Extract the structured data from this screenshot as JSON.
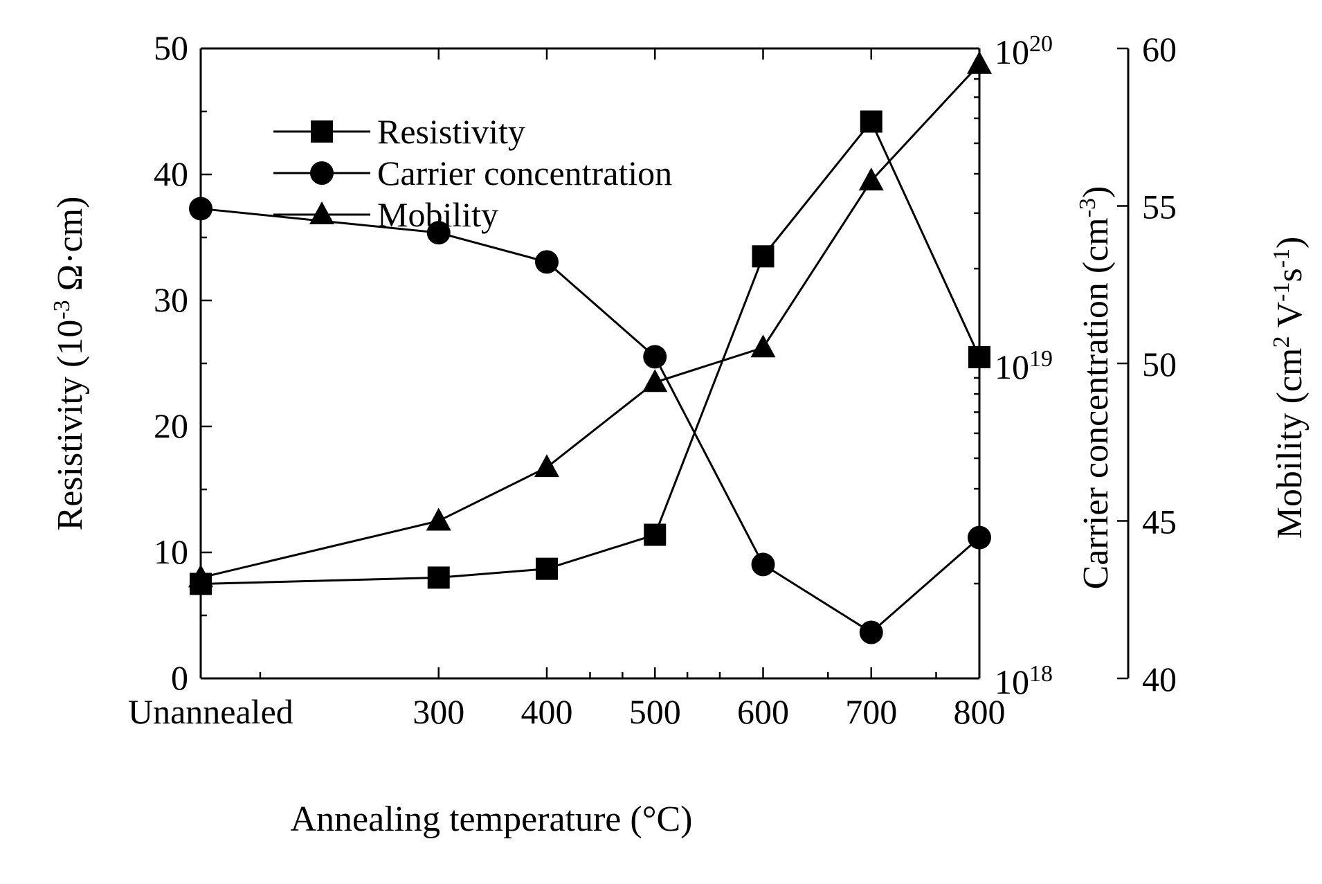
{
  "chart_data": {
    "type": "line",
    "xlabel": "Annealing temperature (°C)",
    "categories": [
      "Unannealed",
      "300",
      "400",
      "500",
      "600",
      "700",
      "800"
    ],
    "x": [
      80,
      300,
      400,
      500,
      600,
      700,
      800
    ],
    "xlim": [
      80,
      800
    ],
    "x_minor_ticks": [
      135,
      440,
      470,
      530,
      560,
      660,
      760
    ],
    "left_axis": {
      "label_pre": "Resistivity (10",
      "label_sup": "-3",
      "label_post": " Ω·cm)",
      "ylim": [
        0,
        50
      ],
      "ticks": [
        "0",
        "10",
        "20",
        "30",
        "40",
        "50"
      ],
      "tick_values": [
        0,
        10,
        20,
        30,
        40,
        50
      ],
      "minor_ticks": [
        5,
        15,
        25,
        35,
        45
      ]
    },
    "middle_axis": {
      "label_pre": "Carrier concentration (cm",
      "label_sup": "-3",
      "label_post": ")",
      "scale": "log",
      "ylim_exp": [
        18,
        20
      ],
      "ticks": [
        {
          "base": "10",
          "exp": "18",
          "value_exp": 18
        },
        {
          "base": "10",
          "exp": "19",
          "value_exp": 19
        },
        {
          "base": "10",
          "exp": "20",
          "value_exp": 20
        }
      ]
    },
    "right_axis": {
      "label_pre": "Mobility (cm",
      "label_sup1": "2",
      "label_mid": " V",
      "label_sup2": "-1",
      "label_mid2": "s",
      "label_sup3": "-1",
      "label_post": ")",
      "ylim": [
        40,
        60
      ],
      "ticks": [
        "40",
        "45",
        "50",
        "55",
        "60"
      ],
      "tick_values": [
        40,
        45,
        50,
        55,
        60
      ]
    },
    "series": [
      {
        "name": "Resistivity",
        "axis": "left",
        "marker": "square",
        "values": [
          7.5,
          8.0,
          8.7,
          11.4,
          33.5,
          44.2,
          25.5
        ]
      },
      {
        "name": "Carrier concentration",
        "axis": "middle",
        "marker": "circle",
        "values": [
          3.1e+19,
          2.6e+19,
          2.1e+19,
          1.05e+19,
          2.3e+18,
          1.4e+18,
          2.8e+18
        ]
      },
      {
        "name": "Mobility",
        "axis": "right",
        "marker": "triangle",
        "values": [
          43.2,
          45.0,
          46.7,
          49.4,
          50.5,
          55.8,
          59.5
        ]
      }
    ],
    "legend": [
      "Resistivity",
      "Carrier concentration",
      "Mobility"
    ],
    "legend_position": "top-left"
  }
}
